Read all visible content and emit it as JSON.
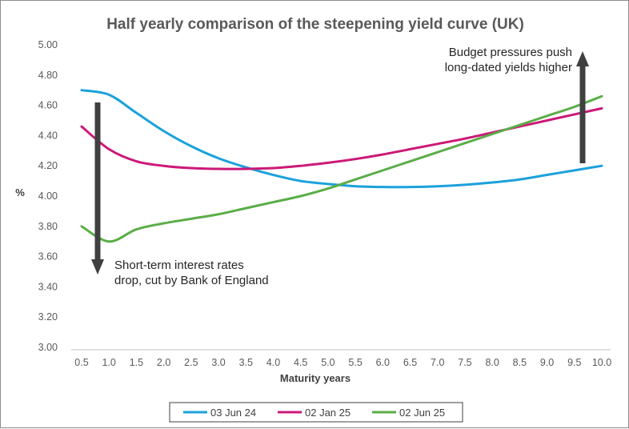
{
  "chart_data": {
    "type": "line",
    "title": "Half yearly comparison of the steepening yield curve (UK)",
    "xlabel": "Maturity years",
    "ylabel": "%",
    "ylim": [
      3.0,
      5.0
    ],
    "yticks": [
      "3.00",
      "3.20",
      "3.40",
      "3.60",
      "3.80",
      "4.00",
      "4.20",
      "4.40",
      "4.60",
      "4.80",
      "5.00"
    ],
    "x": [
      0.5,
      1.0,
      1.5,
      2.0,
      2.5,
      3.0,
      3.5,
      4.0,
      4.5,
      5.0,
      5.5,
      6.0,
      6.5,
      7.0,
      7.5,
      8.0,
      8.5,
      9.0,
      9.5,
      10.0
    ],
    "xticks": [
      "0.5",
      "1.0",
      "1.5",
      "2.0",
      "2.5",
      "3.0",
      "3.5",
      "4.0",
      "4.5",
      "5.0",
      "5.5",
      "6.0",
      "6.5",
      "7.0",
      "7.5",
      "8.0",
      "8.5",
      "9.0",
      "9.5",
      "10.0"
    ],
    "series": [
      {
        "name": "03 Jun 24",
        "color": "#1ba1dc",
        "values": [
          4.7,
          4.67,
          4.55,
          4.43,
          4.33,
          4.25,
          4.19,
          4.14,
          4.1,
          4.08,
          4.065,
          4.06,
          4.06,
          4.065,
          4.075,
          4.09,
          4.11,
          4.14,
          4.17,
          4.2
        ]
      },
      {
        "name": "02 Jan 25",
        "color": "#cc1977",
        "values": [
          4.46,
          4.31,
          4.23,
          4.2,
          4.185,
          4.18,
          4.18,
          4.185,
          4.2,
          4.22,
          4.245,
          4.275,
          4.31,
          4.345,
          4.38,
          4.42,
          4.46,
          4.5,
          4.54,
          4.58
        ]
      },
      {
        "name": "02 Jun 25",
        "color": "#5aad47",
        "values": [
          3.8,
          3.7,
          3.78,
          3.82,
          3.85,
          3.88,
          3.92,
          3.96,
          4.0,
          4.05,
          4.11,
          4.17,
          4.23,
          4.29,
          4.35,
          4.41,
          4.47,
          4.53,
          4.59,
          4.66
        ]
      }
    ],
    "annotations": {
      "down": {
        "line1": "Short-term interest rates",
        "line2": "drop, cut by Bank of England"
      },
      "up": {
        "line1": "Budget pressures push",
        "line2": "long-dated yields higher"
      }
    },
    "arrow_color": "#404040",
    "grid": false,
    "legend_position": "bottom"
  }
}
